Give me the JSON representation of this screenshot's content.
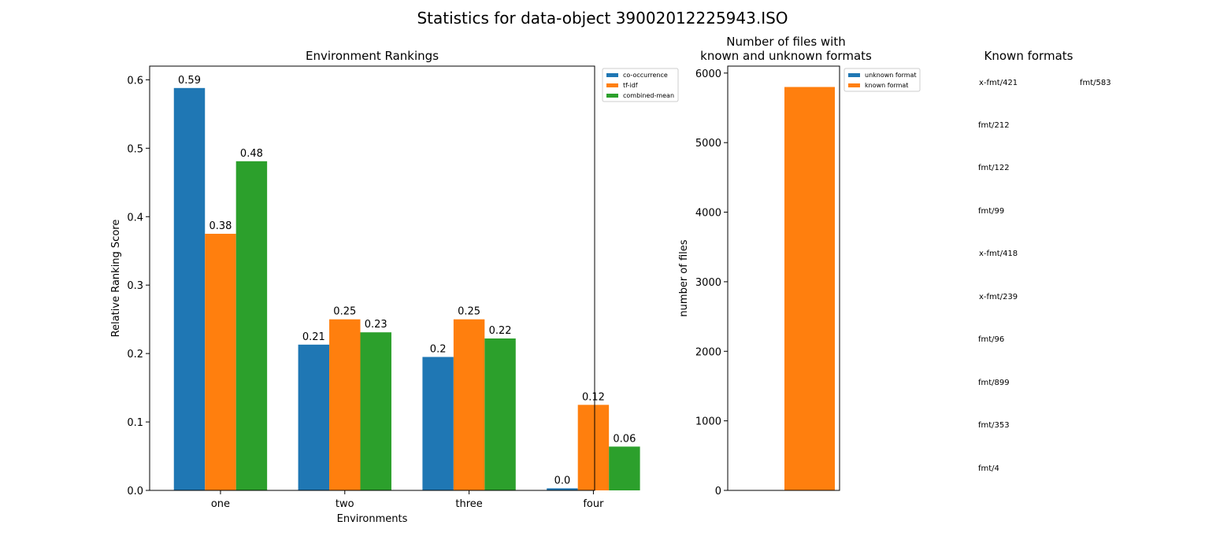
{
  "suptitle": "Statistics for data-object 39002012225943.ISO",
  "chart_data": [
    {
      "type": "bar",
      "title": "Environment Rankings",
      "xlabel": "Environments",
      "ylabel": "Relative Ranking Score",
      "categories": [
        "one",
        "two",
        "three",
        "four"
      ],
      "ylim": [
        0,
        0.62
      ],
      "yticks": [
        0.0,
        0.1,
        0.2,
        0.3,
        0.4,
        0.5,
        0.6
      ],
      "ytick_labels": [
        "0.0",
        "0.1",
        "0.2",
        "0.3",
        "0.4",
        "0.5",
        "0.6"
      ],
      "legend_position": "outside-top-right",
      "grid": false,
      "series": [
        {
          "name": "co-occurrence",
          "color": "#1f77b4",
          "values": [
            0.588,
            0.213,
            0.195,
            0.003
          ],
          "labels": [
            "0.59",
            "0.21",
            "0.2",
            "0.0"
          ]
        },
        {
          "name": "tf-idf",
          "color": "#ff7f0e",
          "values": [
            0.375,
            0.25,
            0.25,
            0.125
          ],
          "labels": [
            "0.38",
            "0.25",
            "0.25",
            "0.12"
          ]
        },
        {
          "name": "combined-mean",
          "color": "#2ca02c",
          "values": [
            0.481,
            0.231,
            0.222,
            0.064
          ],
          "labels": [
            "0.48",
            "0.23",
            "0.22",
            "0.06"
          ]
        }
      ]
    },
    {
      "type": "bar",
      "title": "Number of files with\nknown and unknown formats",
      "xlabel": "",
      "ylabel": "number of files",
      "categories": [
        ""
      ],
      "ylim": [
        0,
        6100
      ],
      "yticks": [
        0,
        1000,
        2000,
        3000,
        4000,
        5000,
        6000
      ],
      "ytick_labels": [
        "0",
        "1000",
        "2000",
        "3000",
        "4000",
        "5000",
        "6000"
      ],
      "legend_position": "outside-top-right",
      "grid": false,
      "series": [
        {
          "name": "unknown format",
          "color": "#1f77b4",
          "values": [
            0
          ]
        },
        {
          "name": "known format",
          "color": "#ff7f0e",
          "values": [
            5800
          ]
        }
      ]
    }
  ],
  "known_formats": {
    "title": "Known formats",
    "items": [
      "x-fmt/421",
      "fmt/583",
      "fmt/212",
      "fmt/122",
      "fmt/99",
      "x-fmt/418",
      "x-fmt/239",
      "fmt/96",
      "fmt/899",
      "fmt/353",
      "fmt/4"
    ]
  }
}
